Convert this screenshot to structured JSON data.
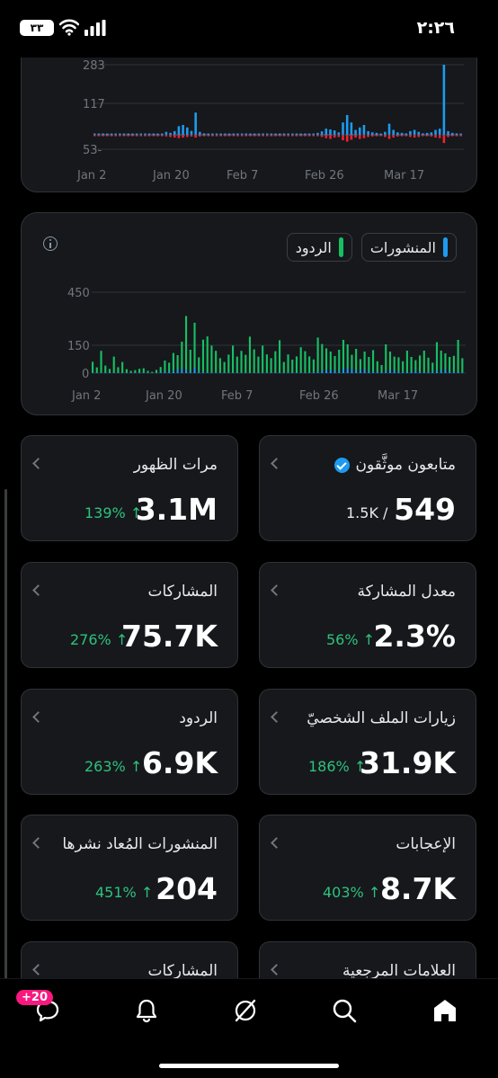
{
  "status_bar": {
    "time": "٢:٢٦",
    "battery": "٣٣"
  },
  "chart1": {
    "y_ticks": [
      "283",
      "117",
      "53-"
    ],
    "x_ticks": [
      "Jan 2",
      "Jan 20",
      "Feb 7",
      "Feb 26",
      "Mar 17"
    ],
    "colors": {
      "posts": "#1d9bf0",
      "replies": "#f4212e"
    }
  },
  "chart2": {
    "y_ticks": [
      "450",
      "150",
      "0"
    ],
    "x_ticks": [
      "Jan 2",
      "Jan 20",
      "Feb 7",
      "Feb 26",
      "Mar 17"
    ],
    "legend": {
      "posts": "المنشورات",
      "replies": "الردود"
    },
    "colors": {
      "posts": "#1d9bf0",
      "replies": "#17bf63"
    }
  },
  "chart_data": [
    {
      "type": "bar",
      "x_range": [
        "Jan 2",
        "Mar 31"
      ],
      "ylim": [
        -53,
        283
      ],
      "y_ticks": [
        283,
        117,
        -53
      ],
      "series": [
        {
          "values": [
            2,
            1,
            3,
            1,
            2,
            1,
            2,
            1,
            1,
            2,
            1,
            3,
            1,
            2,
            1,
            2,
            3,
            12,
            8,
            15,
            35,
            40,
            30,
            16,
            90,
            12,
            6,
            4,
            2,
            3,
            2,
            1,
            2,
            2,
            1,
            3,
            1,
            2,
            1,
            1,
            2,
            3,
            2,
            1,
            2,
            1,
            3,
            4,
            2,
            3,
            1,
            2,
            5,
            8,
            14,
            25,
            22,
            18,
            10,
            50,
            80,
            50,
            20,
            30,
            40,
            15,
            10,
            8,
            5,
            12,
            45,
            20,
            10,
            8,
            6,
            15,
            20,
            12,
            6,
            8,
            10,
            20,
            25,
            283,
            15,
            8,
            6,
            2
          ]
        },
        {
          "values": [
            -1,
            -1,
            -2,
            -1,
            -1,
            -1,
            -1,
            -1,
            -1,
            -1,
            -1,
            -2,
            -1,
            -1,
            -1,
            -1,
            -2,
            -6,
            -8,
            -10,
            -12,
            -10,
            -8,
            -6,
            -10,
            -6,
            -5,
            -3,
            -2,
            -2,
            -1,
            -1,
            -1,
            -1,
            -1,
            -2,
            -1,
            -1,
            -1,
            -1,
            -1,
            -2,
            -1,
            -1,
            -1,
            -1,
            -2,
            -3,
            -2,
            -2,
            -1,
            -1,
            -3,
            -5,
            -8,
            -12,
            -15,
            -10,
            -8,
            -20,
            -25,
            -18,
            -10,
            -15,
            -12,
            -8,
            -6,
            -5,
            -4,
            -8,
            -15,
            -10,
            -6,
            -5,
            -4,
            -8,
            -10,
            -8,
            -4,
            -5,
            -6,
            -10,
            -12,
            -30,
            -8,
            -5,
            -4,
            -2
          ]
        }
      ]
    },
    {
      "type": "bar",
      "x_range": [
        "Jan 2",
        "Mar 31"
      ],
      "ylim": [
        0,
        450
      ],
      "y_ticks": [
        450,
        150,
        0
      ],
      "series": [
        {
          "name": "المنشورات",
          "values": [
            3,
            2,
            4,
            2,
            3,
            2,
            3,
            2,
            2,
            3,
            2,
            4,
            2,
            3,
            2,
            3,
            4,
            10,
            8,
            12,
            20,
            25,
            18,
            10,
            30,
            8,
            6,
            4,
            3,
            4,
            3,
            2,
            3,
            3,
            2,
            4,
            2,
            3,
            2,
            2,
            3,
            4,
            3,
            2,
            3,
            2,
            4,
            5,
            3,
            4,
            2,
            3,
            6,
            8,
            12,
            18,
            20,
            15,
            10,
            25,
            30,
            22,
            15,
            18,
            20,
            10,
            8,
            6,
            5,
            10,
            20,
            12,
            8,
            6,
            5,
            10,
            12,
            8,
            5,
            6,
            8,
            12,
            15,
            20,
            10,
            6,
            5,
            3
          ]
        },
        {
          "name": "الردود",
          "values": [
            60,
            30,
            120,
            40,
            20,
            90,
            30,
            60,
            20,
            10,
            15,
            20,
            25,
            10,
            5,
            15,
            30,
            60,
            50,
            100,
            80,
            150,
            300,
            120,
            250,
            80,
            180,
            200,
            150,
            120,
            80,
            60,
            100,
            150,
            90,
            120,
            100,
            200,
            130,
            90,
            150,
            100,
            80,
            120,
            180,
            60,
            100,
            70,
            90,
            140,
            120,
            90,
            70,
            190,
            150,
            120,
            100,
            80,
            120,
            160,
            130,
            80,
            120,
            60,
            100,
            80,
            120,
            60,
            40,
            150,
            100,
            80,
            80,
            60,
            120,
            80,
            60,
            90,
            120,
            80,
            50,
            160,
            110,
            90,
            80,
            90,
            180,
            80
          ]
        }
      ]
    }
  ],
  "cards": [
    {
      "title": "متابعون موثَّقون",
      "verified": true,
      "value": "549",
      "sub": "1.5K /"
    },
    {
      "title": "مرات الظهور",
      "value": "3.1M",
      "delta": "139% ↑"
    },
    {
      "title": "معدل المشاركة",
      "value": "2.3%",
      "delta": "56% ↑"
    },
    {
      "title": "المشاركات",
      "value": "75.7K",
      "delta": "276% ↑"
    },
    {
      "title": "زيارات الملف الشخصيّ",
      "value": "31.9K",
      "delta": "186% ↑"
    },
    {
      "title": "الردود",
      "value": "6.9K",
      "delta": "263% ↑"
    },
    {
      "title": "الإعجابات",
      "value": "8.7K",
      "delta": "403% ↑"
    },
    {
      "title": "المنشورات المُعاد نشرها",
      "value": "204",
      "delta": "451% ↑"
    },
    {
      "title": "العلامات المرجعية"
    },
    {
      "title": "المشاركات"
    }
  ],
  "tab_bar": {
    "badge": "+20"
  }
}
